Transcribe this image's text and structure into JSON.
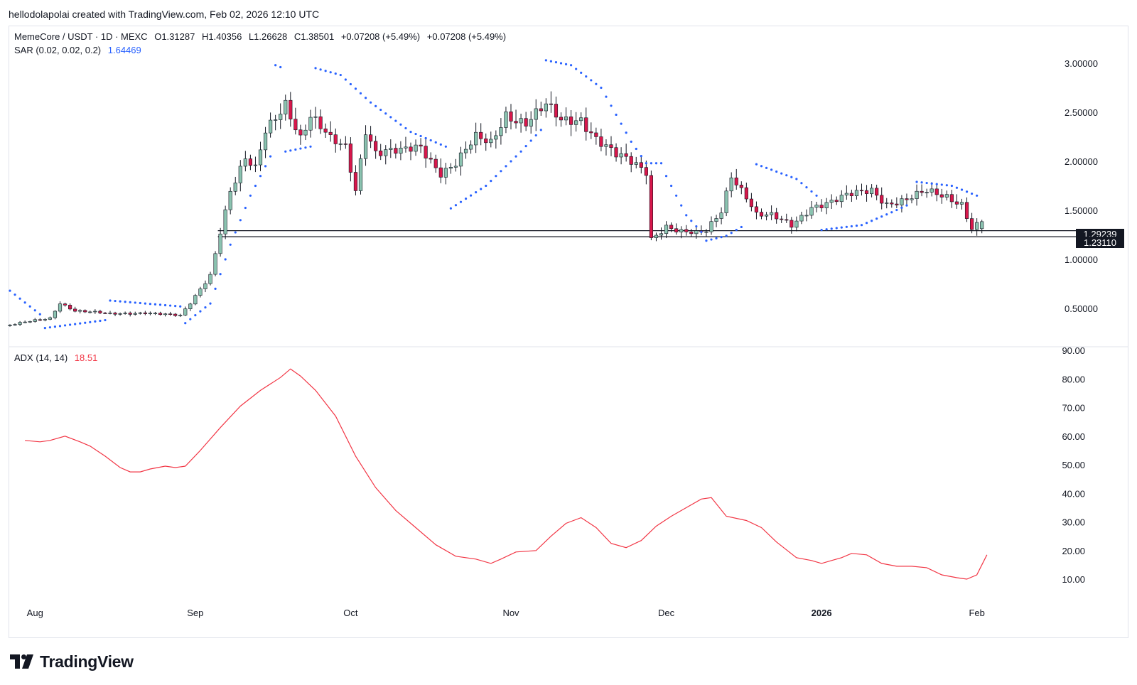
{
  "header": {
    "attribution": "hellodolapolai created with TradingView.com, Feb 02, 2026 12:10 UTC"
  },
  "legend": {
    "symbol": "MemeCore / USDT · 1D · MEXC",
    "open": "O1.31287",
    "high": "H1.40356",
    "low": "L1.26628",
    "close": "C1.38501",
    "change1": "+0.07208 (+5.49%)",
    "change2": "+0.07208 (+5.49%)",
    "sar_label": "SAR (0.02, 0.02, 0.2)",
    "sar_value": "1.64469",
    "adx_label": "ADX (14, 14)",
    "adx_value": "18.51"
  },
  "price_axis": {
    "ticks": [
      "3.00000",
      "2.50000",
      "2.00000",
      "1.50000",
      "1.00000",
      "0.50000"
    ],
    "badge_top": "1.29239",
    "badge_bottom": "1.23110"
  },
  "adx_axis": {
    "ticks": [
      "90.00",
      "80.00",
      "70.00",
      "60.00",
      "50.00",
      "40.00",
      "30.00",
      "20.00",
      "10.00"
    ]
  },
  "time_axis": {
    "labels": [
      "Aug",
      "Sep",
      "Oct",
      "Nov",
      "Dec",
      "2026",
      "Feb"
    ]
  },
  "brand": {
    "name": "TradingView"
  },
  "colors": {
    "up": "#8bc3b0",
    "down": "#d8174b",
    "sar": "#2962ff",
    "adx": "#f23645"
  },
  "chart_data": {
    "type": "candlestick",
    "title": "MemeCore / USDT · 1D · MEXC",
    "price_range": [
      0.2,
      3.2
    ],
    "horizontal_levels": [
      1.29239,
      1.2311
    ],
    "anchors": [
      {
        "day": 0,
        "price": 0.33
      },
      {
        "day": 8,
        "price": 0.4
      },
      {
        "day": 10,
        "price": 0.56
      },
      {
        "day": 13,
        "price": 0.48
      },
      {
        "day": 20,
        "price": 0.44
      },
      {
        "day": 27,
        "price": 0.46
      },
      {
        "day": 34,
        "price": 0.42
      },
      {
        "day": 36,
        "price": 0.55
      },
      {
        "day": 40,
        "price": 0.85
      },
      {
        "day": 42,
        "price": 1.3
      },
      {
        "day": 44,
        "price": 1.7
      },
      {
        "day": 47,
        "price": 2.0
      },
      {
        "day": 49,
        "price": 1.9
      },
      {
        "day": 51,
        "price": 2.3
      },
      {
        "day": 55,
        "price": 2.62
      },
      {
        "day": 58,
        "price": 2.25
      },
      {
        "day": 60,
        "price": 2.45
      },
      {
        "day": 64,
        "price": 2.2
      },
      {
        "day": 67,
        "price": 2.15
      },
      {
        "day": 69,
        "price": 1.72
      },
      {
        "day": 71,
        "price": 2.35
      },
      {
        "day": 73,
        "price": 2.1
      },
      {
        "day": 78,
        "price": 2.08
      },
      {
        "day": 82,
        "price": 2.15
      },
      {
        "day": 86,
        "price": 1.9
      },
      {
        "day": 89,
        "price": 1.98
      },
      {
        "day": 93,
        "price": 2.22
      },
      {
        "day": 96,
        "price": 2.18
      },
      {
        "day": 99,
        "price": 2.5
      },
      {
        "day": 103,
        "price": 2.4
      },
      {
        "day": 107,
        "price": 2.55
      },
      {
        "day": 110,
        "price": 2.4
      },
      {
        "day": 114,
        "price": 2.45
      },
      {
        "day": 117,
        "price": 2.25
      },
      {
        "day": 121,
        "price": 2.05
      },
      {
        "day": 125,
        "price": 1.95
      },
      {
        "day": 127,
        "price": 1.9
      },
      {
        "day": 128,
        "price": 1.22
      },
      {
        "day": 131,
        "price": 1.35
      },
      {
        "day": 134,
        "price": 1.28
      },
      {
        "day": 137,
        "price": 1.25
      },
      {
        "day": 139,
        "price": 1.28
      },
      {
        "day": 142,
        "price": 1.5
      },
      {
        "day": 144,
        "price": 1.88
      },
      {
        "day": 147,
        "price": 1.65
      },
      {
        "day": 149,
        "price": 1.45
      },
      {
        "day": 152,
        "price": 1.43
      },
      {
        "day": 156,
        "price": 1.35
      },
      {
        "day": 160,
        "price": 1.55
      },
      {
        "day": 164,
        "price": 1.58
      },
      {
        "day": 168,
        "price": 1.65
      },
      {
        "day": 172,
        "price": 1.72
      },
      {
        "day": 175,
        "price": 1.58
      },
      {
        "day": 179,
        "price": 1.6
      },
      {
        "day": 183,
        "price": 1.68
      },
      {
        "day": 187,
        "price": 1.65
      },
      {
        "day": 190,
        "price": 1.58
      },
      {
        "day": 192,
        "price": 1.32
      },
      {
        "day": 194,
        "price": 1.385
      }
    ],
    "sar_segments": [
      {
        "side": "above",
        "points": [
          {
            "day": 0,
            "price": 0.68
          },
          {
            "day": 6,
            "price": 0.44
          }
        ]
      },
      {
        "side": "below",
        "points": [
          {
            "day": 7,
            "price": 0.3
          },
          {
            "day": 19,
            "price": 0.38
          }
        ]
      },
      {
        "side": "above",
        "points": [
          {
            "day": 20,
            "price": 0.58
          },
          {
            "day": 34,
            "price": 0.52
          }
        ]
      },
      {
        "side": "below",
        "points": [
          {
            "day": 35,
            "price": 0.35
          },
          {
            "day": 40,
            "price": 0.55
          },
          {
            "day": 44,
            "price": 1.15
          },
          {
            "day": 48,
            "price": 1.65
          },
          {
            "day": 52,
            "price": 2.05
          }
        ]
      },
      {
        "side": "above",
        "points": [
          {
            "day": 53,
            "price": 2.98
          },
          {
            "day": 54,
            "price": 2.96
          }
        ]
      },
      {
        "side": "below",
        "points": [
          {
            "day": 55,
            "price": 2.1
          },
          {
            "day": 60,
            "price": 2.15
          }
        ]
      },
      {
        "side": "above",
        "points": [
          {
            "day": 61,
            "price": 2.95
          },
          {
            "day": 66,
            "price": 2.88
          },
          {
            "day": 72,
            "price": 2.6
          },
          {
            "day": 80,
            "price": 2.3
          },
          {
            "day": 87,
            "price": 2.15
          }
        ]
      },
      {
        "side": "below",
        "points": [
          {
            "day": 88,
            "price": 1.52
          },
          {
            "day": 95,
            "price": 1.75
          },
          {
            "day": 102,
            "price": 2.1
          },
          {
            "day": 106,
            "price": 2.32
          }
        ]
      },
      {
        "side": "above",
        "points": [
          {
            "day": 107,
            "price": 3.03
          },
          {
            "day": 112,
            "price": 2.98
          },
          {
            "day": 118,
            "price": 2.75
          },
          {
            "day": 124,
            "price": 2.2
          },
          {
            "day": 127,
            "price": 1.98
          },
          {
            "day": 130,
            "price": 1.98
          }
        ]
      },
      {
        "side": "above",
        "points": [
          {
            "day": 131,
            "price": 1.85
          },
          {
            "day": 135,
            "price": 1.45
          },
          {
            "day": 138,
            "price": 1.28
          }
        ]
      },
      {
        "side": "below",
        "points": [
          {
            "day": 139,
            "price": 1.19
          },
          {
            "day": 143,
            "price": 1.24
          },
          {
            "day": 146,
            "price": 1.33
          }
        ]
      },
      {
        "side": "above",
        "points": [
          {
            "day": 149,
            "price": 1.97
          },
          {
            "day": 157,
            "price": 1.82
          },
          {
            "day": 161,
            "price": 1.65
          }
        ]
      },
      {
        "side": "below",
        "points": [
          {
            "day": 162,
            "price": 1.3
          },
          {
            "day": 170,
            "price": 1.35
          },
          {
            "day": 176,
            "price": 1.48
          },
          {
            "day": 179,
            "price": 1.55
          }
        ]
      },
      {
        "side": "above",
        "points": [
          {
            "day": 181,
            "price": 1.79
          },
          {
            "day": 188,
            "price": 1.75
          },
          {
            "day": 193,
            "price": 1.65
          }
        ]
      }
    ],
    "adx": {
      "label": "ADX (14, 14)",
      "range": [
        0,
        95
      ],
      "points": [
        {
          "day": 3,
          "value": 58.5
        },
        {
          "day": 6,
          "value": 58
        },
        {
          "day": 8,
          "value": 58.5
        },
        {
          "day": 11,
          "value": 60
        },
        {
          "day": 14,
          "value": 58
        },
        {
          "day": 16,
          "value": 56.5
        },
        {
          "day": 19,
          "value": 53
        },
        {
          "day": 22,
          "value": 49
        },
        {
          "day": 24,
          "value": 47.5
        },
        {
          "day": 26,
          "value": 47.5
        },
        {
          "day": 28,
          "value": 48.5
        },
        {
          "day": 31,
          "value": 49.5
        },
        {
          "day": 33,
          "value": 49
        },
        {
          "day": 35,
          "value": 49.5
        },
        {
          "day": 38,
          "value": 55
        },
        {
          "day": 42,
          "value": 63
        },
        {
          "day": 46,
          "value": 70.5
        },
        {
          "day": 50,
          "value": 76
        },
        {
          "day": 54,
          "value": 80.5
        },
        {
          "day": 56,
          "value": 83.5
        },
        {
          "day": 58,
          "value": 81
        },
        {
          "day": 61,
          "value": 76
        },
        {
          "day": 65,
          "value": 67
        },
        {
          "day": 69,
          "value": 53
        },
        {
          "day": 73,
          "value": 42
        },
        {
          "day": 77,
          "value": 34
        },
        {
          "day": 81,
          "value": 28
        },
        {
          "day": 85,
          "value": 22
        },
        {
          "day": 89,
          "value": 18
        },
        {
          "day": 93,
          "value": 17
        },
        {
          "day": 96,
          "value": 15.5
        },
        {
          "day": 98,
          "value": 17
        },
        {
          "day": 101,
          "value": 19.5
        },
        {
          "day": 105,
          "value": 20
        },
        {
          "day": 108,
          "value": 25
        },
        {
          "day": 111,
          "value": 29.5
        },
        {
          "day": 114,
          "value": 31.5
        },
        {
          "day": 117,
          "value": 28
        },
        {
          "day": 120,
          "value": 22.5
        },
        {
          "day": 123,
          "value": 21
        },
        {
          "day": 126,
          "value": 23.5
        },
        {
          "day": 129,
          "value": 28.5
        },
        {
          "day": 132,
          "value": 32
        },
        {
          "day": 135,
          "value": 35
        },
        {
          "day": 138,
          "value": 38
        },
        {
          "day": 140,
          "value": 38.5
        },
        {
          "day": 143,
          "value": 32
        },
        {
          "day": 147,
          "value": 30.5
        },
        {
          "day": 150,
          "value": 28
        },
        {
          "day": 153,
          "value": 23
        },
        {
          "day": 157,
          "value": 17.5
        },
        {
          "day": 160,
          "value": 16.5
        },
        {
          "day": 162,
          "value": 15.5
        },
        {
          "day": 164,
          "value": 16.5
        },
        {
          "day": 166,
          "value": 17.5
        },
        {
          "day": 168,
          "value": 19
        },
        {
          "day": 171,
          "value": 18.5
        },
        {
          "day": 174,
          "value": 15.5
        },
        {
          "day": 177,
          "value": 14.5
        },
        {
          "day": 180,
          "value": 14.5
        },
        {
          "day": 183,
          "value": 14
        },
        {
          "day": 186,
          "value": 11.5
        },
        {
          "day": 189,
          "value": 10.5
        },
        {
          "day": 191,
          "value": 10
        },
        {
          "day": 193,
          "value": 11.5
        },
        {
          "day": 195,
          "value": 18.5
        }
      ]
    },
    "time_axis": [
      "Aug",
      "Sep",
      "Oct",
      "Nov",
      "Dec",
      "2026",
      "Feb"
    ]
  }
}
